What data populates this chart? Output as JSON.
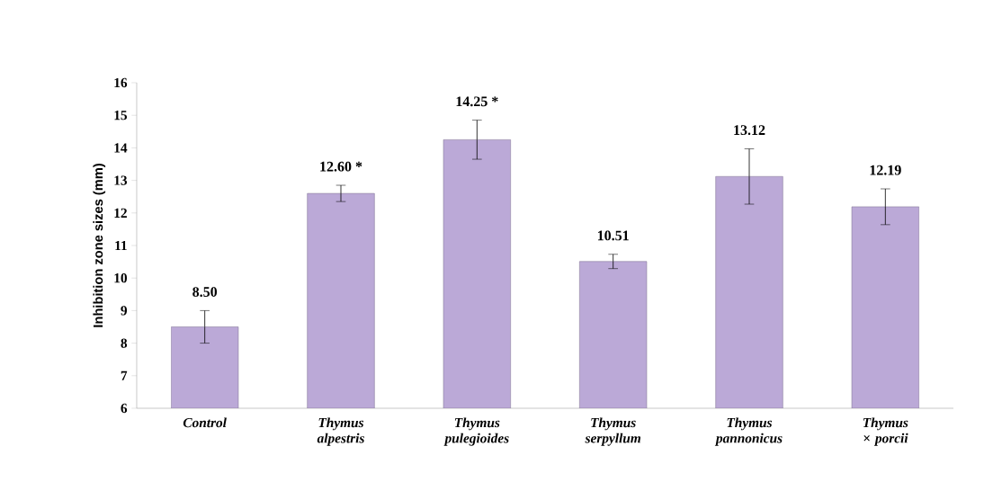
{
  "chart_data": {
    "type": "bar",
    "ylabel": "Inhibition zone sizes (mm)",
    "categories": [
      "Control",
      "Thymus alpestris",
      "Thymus pulegioides",
      "Thymus serpyllum",
      "Thymus pannonicus",
      "Thymus × porcii"
    ],
    "values": [
      8.5,
      12.6,
      14.25,
      10.51,
      13.12,
      12.19
    ],
    "errors": [
      0.5,
      0.25,
      0.6,
      0.22,
      0.85,
      0.55
    ],
    "value_labels": [
      "8.50",
      "12.60 *",
      "14.25  *",
      "10.51",
      "13.12",
      "12.19"
    ],
    "color": "#bba9d7",
    "ylim": [
      6,
      16
    ],
    "yticks": [
      6,
      7,
      8,
      9,
      10,
      11,
      12,
      13,
      14,
      15,
      16
    ]
  }
}
